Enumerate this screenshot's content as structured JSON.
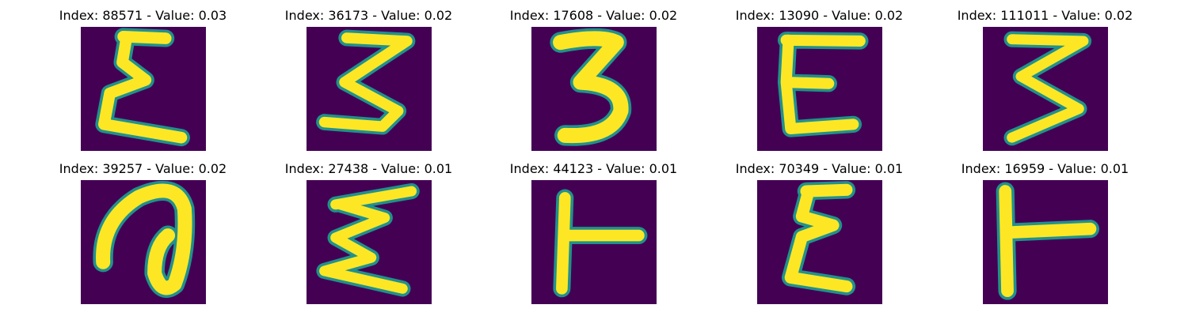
{
  "figure": {
    "background_color": "#440154",
    "stroke_color": "#fde725",
    "edge_color": "#21918c",
    "panels": [
      {
        "title": "Index: 88571 - Value: 0.03",
        "glyph": "sigma-e"
      },
      {
        "title": "Index: 36173 - Value: 0.02",
        "glyph": "three-wide"
      },
      {
        "title": "Index: 17608 - Value: 0.02",
        "glyph": "three-bold"
      },
      {
        "title": "Index: 13090 - Value: 0.02",
        "glyph": "e-letter"
      },
      {
        "title": "Index: 111011 - Value: 0.02",
        "glyph": "three-thin"
      },
      {
        "title": "Index: 39257 - Value: 0.02",
        "glyph": "loop-a"
      },
      {
        "title": "Index: 27438 - Value: 0.01",
        "glyph": "sigma-z"
      },
      {
        "title": "Index: 44123 - Value: 0.01",
        "glyph": "t-left"
      },
      {
        "title": "Index: 70349 - Value: 0.01",
        "glyph": "sigma-e2"
      },
      {
        "title": "Index: 16959 - Value: 0.01",
        "glyph": "t-left2"
      }
    ]
  }
}
